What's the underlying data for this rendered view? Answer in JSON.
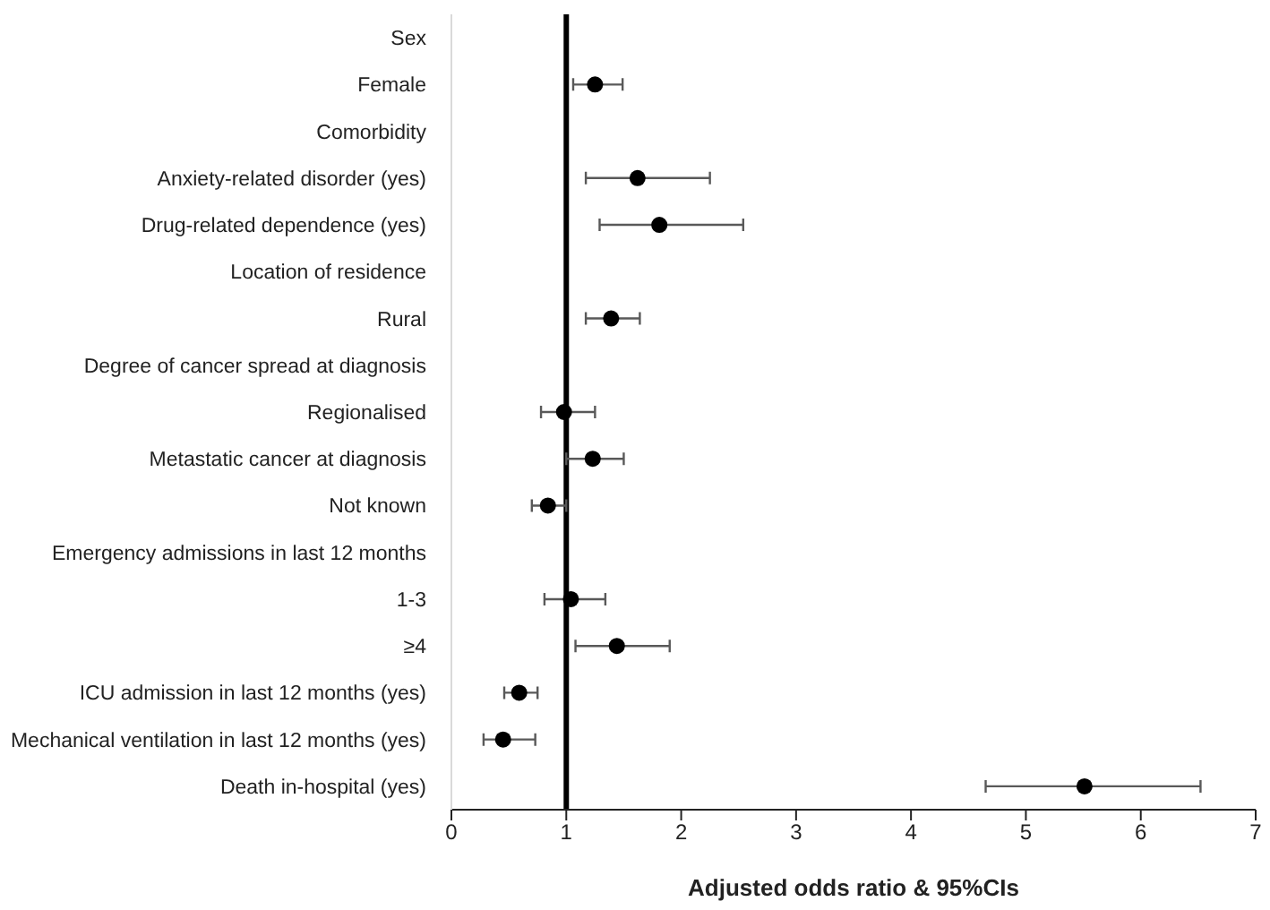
{
  "chart_data": {
    "type": "scatter",
    "orientation": "horizontal",
    "xlabel": "Adjusted odds ratio & 95%CIs",
    "categories": [
      "Sex",
      "Female",
      "Comorbidity",
      "Anxiety-related disorder (yes)",
      "Drug-related dependence (yes)",
      "Location of residence",
      "Rural",
      "Degree of cancer spread at diagnosis",
      "Regionalised",
      "Metastatic cancer at diagnosis",
      "Not known",
      "Emergency admissions in last 12 months",
      "1-3",
      "≥4",
      "ICU admission in last 12 months (yes)",
      "Mechanical ventilation in last 12 months (yes)",
      "Death in-hospital (yes)"
    ],
    "color": "#000000",
    "values": [
      null,
      1.25,
      null,
      1.62,
      1.81,
      null,
      1.39,
      null,
      0.98,
      1.23,
      0.84,
      null,
      1.04,
      1.44,
      0.59,
      0.45,
      5.51
    ],
    "errors": [
      null,
      [
        1.06,
        1.49
      ],
      null,
      [
        1.17,
        2.25
      ],
      [
        1.29,
        2.54
      ],
      null,
      [
        1.17,
        1.64
      ],
      null,
      [
        0.78,
        1.25
      ],
      [
        1.0,
        1.5
      ],
      [
        0.7,
        1.0
      ],
      null,
      [
        0.81,
        1.34
      ],
      [
        1.08,
        1.9
      ],
      [
        0.46,
        0.75
      ],
      [
        0.28,
        0.73
      ],
      [
        4.65,
        6.52
      ]
    ],
    "xlim": [
      0,
      7
    ],
    "xticks": [
      0,
      1,
      2,
      3,
      4,
      5,
      6,
      7
    ],
    "ref_lines": [
      {
        "axis": "x",
        "value": 1,
        "color": "#000000"
      }
    ],
    "marker": "circle",
    "grid": false,
    "legend": false
  }
}
